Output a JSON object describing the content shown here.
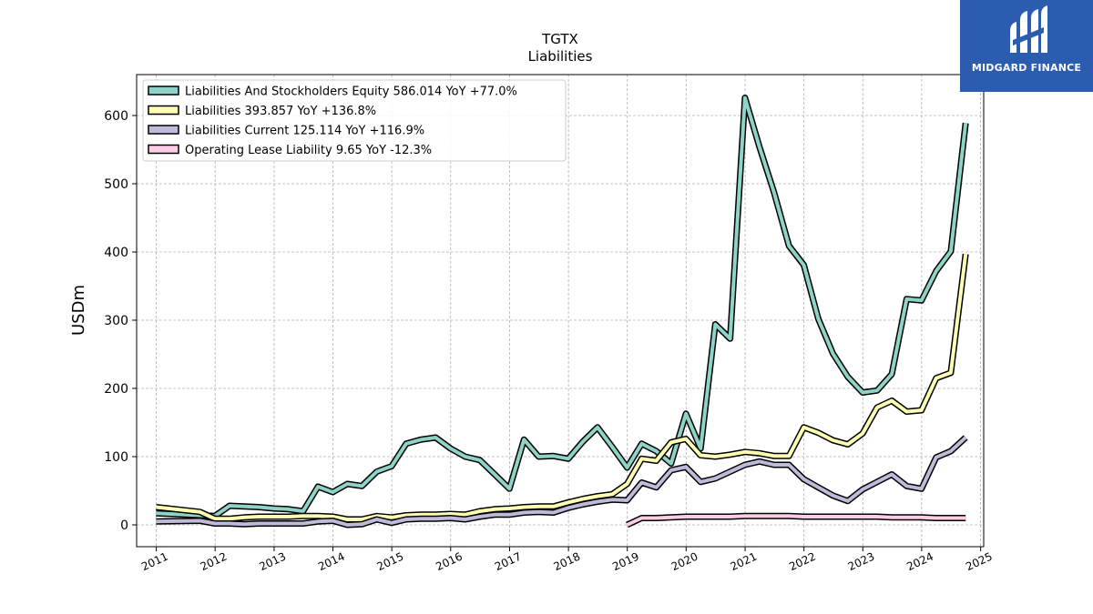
{
  "brand": {
    "name": "MIDGARD FINANCE",
    "color": "#2b5cb0"
  },
  "chart_data": {
    "type": "line",
    "title": "TGTX",
    "subtitle": "Liabilities",
    "xlabel": "",
    "ylabel": "USDm",
    "x_ticks": [
      "2011",
      "2012",
      "2013",
      "2014",
      "2015",
      "2016",
      "2017",
      "2018",
      "2019",
      "2020",
      "2021",
      "2022",
      "2023",
      "2024",
      "2025"
    ],
    "xlim": [
      "2010-09-01",
      "2025-01-20"
    ],
    "ylim": [
      -32,
      660
    ],
    "y_ticks": [
      0,
      100,
      200,
      300,
      400,
      500,
      600
    ],
    "grid": true,
    "legend_position": "top-left",
    "series": [
      {
        "name": "Liabilities And Stockholders Equity  586.014 YoY +77.0%",
        "color": "#8dd3c7",
        "points": [
          [
            "2010-12-31",
            17
          ],
          [
            "2011-09-30",
            14
          ],
          [
            "2011-12-31",
            13
          ],
          [
            "2012-03-31",
            28
          ],
          [
            "2012-06-30",
            27
          ],
          [
            "2012-09-30",
            26
          ],
          [
            "2012-12-31",
            24
          ],
          [
            "2013-03-31",
            23
          ],
          [
            "2013-06-30",
            20
          ],
          [
            "2013-09-30",
            56
          ],
          [
            "2013-12-31",
            48
          ],
          [
            "2014-03-31",
            60
          ],
          [
            "2014-06-30",
            57
          ],
          [
            "2014-09-30",
            78
          ],
          [
            "2014-12-31",
            86
          ],
          [
            "2015-03-31",
            119
          ],
          [
            "2015-06-30",
            125
          ],
          [
            "2015-09-30",
            128
          ],
          [
            "2015-12-31",
            112
          ],
          [
            "2016-03-31",
            100
          ],
          [
            "2016-06-30",
            95
          ],
          [
            "2016-09-30",
            74
          ],
          [
            "2016-12-31",
            53
          ],
          [
            "2017-03-31",
            125
          ],
          [
            "2017-06-30",
            100
          ],
          [
            "2017-09-30",
            101
          ],
          [
            "2017-12-31",
            97
          ],
          [
            "2018-03-31",
            122
          ],
          [
            "2018-06-30",
            143
          ],
          [
            "2018-09-30",
            114
          ],
          [
            "2018-12-31",
            84
          ],
          [
            "2019-03-31",
            119
          ],
          [
            "2019-06-30",
            108
          ],
          [
            "2019-09-30",
            90
          ],
          [
            "2019-12-31",
            163
          ],
          [
            "2020-03-31",
            112
          ],
          [
            "2020-06-30",
            294
          ],
          [
            "2020-09-30",
            273
          ],
          [
            "2020-12-31",
            626
          ],
          [
            "2021-03-31",
            554
          ],
          [
            "2021-06-30",
            487
          ],
          [
            "2021-09-30",
            409
          ],
          [
            "2021-12-31",
            381
          ],
          [
            "2022-03-31",
            302
          ],
          [
            "2022-06-30",
            251
          ],
          [
            "2022-09-30",
            217
          ],
          [
            "2022-12-31",
            194
          ],
          [
            "2023-03-31",
            197
          ],
          [
            "2023-06-30",
            221
          ],
          [
            "2023-09-30",
            331
          ],
          [
            "2023-12-31",
            329
          ],
          [
            "2024-03-31",
            372
          ],
          [
            "2024-06-30",
            401
          ],
          [
            "2024-09-30",
            589
          ]
        ]
      },
      {
        "name": "Liabilities  393.857 YoY +136.8%",
        "color": "#ffffb3",
        "points": [
          [
            "2010-12-31",
            26
          ],
          [
            "2011-09-30",
            19
          ],
          [
            "2011-12-31",
            9
          ],
          [
            "2012-03-31",
            9
          ],
          [
            "2012-06-30",
            11
          ],
          [
            "2012-09-30",
            12
          ],
          [
            "2012-12-31",
            12
          ],
          [
            "2013-03-31",
            12
          ],
          [
            "2013-06-30",
            13
          ],
          [
            "2013-09-30",
            13
          ],
          [
            "2013-12-31",
            12
          ],
          [
            "2014-03-31",
            8
          ],
          [
            "2014-06-30",
            8
          ],
          [
            "2014-09-30",
            13
          ],
          [
            "2014-12-31",
            11
          ],
          [
            "2015-03-31",
            14
          ],
          [
            "2015-06-30",
            15
          ],
          [
            "2015-09-30",
            15
          ],
          [
            "2015-12-31",
            16
          ],
          [
            "2016-03-31",
            15
          ],
          [
            "2016-06-30",
            20
          ],
          [
            "2016-09-30",
            23
          ],
          [
            "2016-12-31",
            24
          ],
          [
            "2017-03-31",
            26
          ],
          [
            "2017-06-30",
            27
          ],
          [
            "2017-09-30",
            27
          ],
          [
            "2017-12-31",
            33
          ],
          [
            "2018-03-31",
            38
          ],
          [
            "2018-06-30",
            42
          ],
          [
            "2018-09-30",
            45
          ],
          [
            "2018-12-31",
            60
          ],
          [
            "2019-03-31",
            97
          ],
          [
            "2019-06-30",
            94
          ],
          [
            "2019-09-30",
            121
          ],
          [
            "2019-12-31",
            126
          ],
          [
            "2020-03-31",
            102
          ],
          [
            "2020-06-30",
            100
          ],
          [
            "2020-09-30",
            103
          ],
          [
            "2020-12-31",
            107
          ],
          [
            "2021-03-31",
            105
          ],
          [
            "2021-06-30",
            101
          ],
          [
            "2021-09-30",
            101
          ],
          [
            "2021-12-31",
            143
          ],
          [
            "2022-03-31",
            135
          ],
          [
            "2022-06-30",
            124
          ],
          [
            "2022-09-30",
            118
          ],
          [
            "2022-12-31",
            134
          ],
          [
            "2023-03-31",
            172
          ],
          [
            "2023-06-30",
            182
          ],
          [
            "2023-09-30",
            166
          ],
          [
            "2023-12-31",
            168
          ],
          [
            "2024-03-31",
            215
          ],
          [
            "2024-06-30",
            223
          ],
          [
            "2024-09-30",
            397
          ]
        ]
      },
      {
        "name": "Liabilities Current  125.114 YoY +116.9%",
        "color": "#bebada",
        "points": [
          [
            "2010-12-31",
            5
          ],
          [
            "2011-09-30",
            6
          ],
          [
            "2011-12-31",
            2
          ],
          [
            "2012-03-31",
            2
          ],
          [
            "2012-06-30",
            1
          ],
          [
            "2012-09-30",
            2
          ],
          [
            "2012-12-31",
            2
          ],
          [
            "2013-03-31",
            2
          ],
          [
            "2013-06-30",
            2
          ],
          [
            "2013-09-30",
            5
          ],
          [
            "2013-12-31",
            6
          ],
          [
            "2014-03-31",
            0
          ],
          [
            "2014-06-30",
            1
          ],
          [
            "2014-09-30",
            8
          ],
          [
            "2014-12-31",
            3
          ],
          [
            "2015-03-31",
            8
          ],
          [
            "2015-06-30",
            9
          ],
          [
            "2015-09-30",
            9
          ],
          [
            "2015-12-31",
            10
          ],
          [
            "2016-03-31",
            8
          ],
          [
            "2016-06-30",
            12
          ],
          [
            "2016-09-30",
            15
          ],
          [
            "2016-12-31",
            15
          ],
          [
            "2017-03-31",
            18
          ],
          [
            "2017-06-30",
            19
          ],
          [
            "2017-09-30",
            18
          ],
          [
            "2017-12-31",
            25
          ],
          [
            "2018-03-31",
            30
          ],
          [
            "2018-06-30",
            34
          ],
          [
            "2018-09-30",
            37
          ],
          [
            "2018-12-31",
            36
          ],
          [
            "2019-03-31",
            62
          ],
          [
            "2019-06-30",
            55
          ],
          [
            "2019-09-30",
            80
          ],
          [
            "2019-12-31",
            85
          ],
          [
            "2020-03-31",
            63
          ],
          [
            "2020-06-30",
            68
          ],
          [
            "2020-09-30",
            78
          ],
          [
            "2020-12-31",
            88
          ],
          [
            "2021-03-31",
            93
          ],
          [
            "2021-06-30",
            88
          ],
          [
            "2021-09-30",
            88
          ],
          [
            "2021-12-31",
            67
          ],
          [
            "2022-03-31",
            55
          ],
          [
            "2022-06-30",
            43
          ],
          [
            "2022-09-30",
            35
          ],
          [
            "2022-12-31",
            52
          ],
          [
            "2023-03-31",
            63
          ],
          [
            "2023-06-30",
            74
          ],
          [
            "2023-09-30",
            57
          ],
          [
            "2023-12-31",
            53
          ],
          [
            "2024-03-31",
            99
          ],
          [
            "2024-06-30",
            108
          ],
          [
            "2024-09-30",
            128
          ]
        ]
      },
      {
        "name": "Operating Lease Liability  9.65 YoY -12.3%",
        "color": "#fccde5",
        "points": [
          [
            "2018-12-31",
            0
          ],
          [
            "2019-03-31",
            10
          ],
          [
            "2019-06-30",
            10
          ],
          [
            "2019-09-30",
            11
          ],
          [
            "2019-12-31",
            12
          ],
          [
            "2020-03-31",
            12
          ],
          [
            "2020-06-30",
            12
          ],
          [
            "2020-09-30",
            12
          ],
          [
            "2020-12-31",
            13
          ],
          [
            "2021-03-31",
            13
          ],
          [
            "2021-06-30",
            13
          ],
          [
            "2021-09-30",
            13
          ],
          [
            "2021-12-31",
            12
          ],
          [
            "2022-03-31",
            12
          ],
          [
            "2022-06-30",
            12
          ],
          [
            "2022-09-30",
            12
          ],
          [
            "2022-12-31",
            12
          ],
          [
            "2023-03-31",
            12
          ],
          [
            "2023-06-30",
            11
          ],
          [
            "2023-09-30",
            11
          ],
          [
            "2023-12-31",
            11
          ],
          [
            "2024-03-31",
            10
          ],
          [
            "2024-06-30",
            10
          ],
          [
            "2024-09-30",
            10
          ]
        ]
      }
    ]
  }
}
